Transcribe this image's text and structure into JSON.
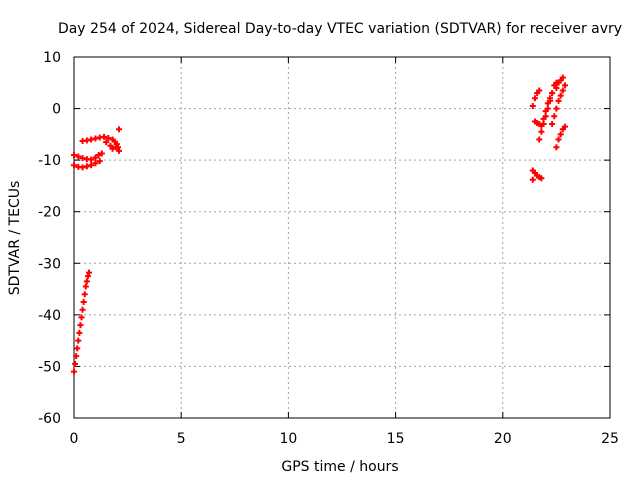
{
  "chart_data": {
    "type": "scatter",
    "title": "Day 254 of 2024, Sidereal Day-to-day VTEC variation (SDTVAR) for receiver avry",
    "xlabel": "GPS time / hours",
    "ylabel": "SDTVAR / TECUs",
    "xlim": [
      0,
      25
    ],
    "ylim": [
      -60,
      10
    ],
    "xticks": [
      "0",
      "5",
      "10",
      "15",
      "20",
      "25"
    ],
    "yticks": [
      "10",
      "0",
      "-10",
      "-20",
      "-30",
      "-40",
      "-50",
      "-60"
    ],
    "grid": true,
    "marker": "+",
    "color": "#ff0000",
    "series": [
      {
        "points": [
          [
            0.0,
            -51.0
          ],
          [
            0.05,
            -49.5
          ],
          [
            0.1,
            -48.0
          ],
          [
            0.15,
            -46.5
          ],
          [
            0.2,
            -45.0
          ],
          [
            0.25,
            -43.5
          ],
          [
            0.3,
            -42.0
          ],
          [
            0.35,
            -40.5
          ],
          [
            0.4,
            -39.0
          ],
          [
            0.45,
            -37.5
          ],
          [
            0.5,
            -36.0
          ],
          [
            0.55,
            -34.5
          ],
          [
            0.6,
            -33.5
          ],
          [
            0.65,
            -32.5
          ],
          [
            0.7,
            -31.8
          ],
          [
            0.0,
            -9.0
          ],
          [
            0.2,
            -9.3
          ],
          [
            0.4,
            -9.6
          ],
          [
            0.6,
            -9.8
          ],
          [
            0.8,
            -9.9
          ],
          [
            1.0,
            -9.5
          ],
          [
            1.15,
            -9.0
          ],
          [
            1.3,
            -8.7
          ],
          [
            0.0,
            -11.0
          ],
          [
            0.2,
            -11.3
          ],
          [
            0.4,
            -11.4
          ],
          [
            0.6,
            -11.2
          ],
          [
            0.8,
            -11.0
          ],
          [
            1.0,
            -10.6
          ],
          [
            1.2,
            -10.2
          ],
          [
            0.4,
            -6.3
          ],
          [
            0.6,
            -6.2
          ],
          [
            0.8,
            -6.0
          ],
          [
            1.0,
            -5.8
          ],
          [
            1.2,
            -5.6
          ],
          [
            1.4,
            -5.5
          ],
          [
            1.6,
            -5.7
          ],
          [
            1.8,
            -6.0
          ],
          [
            1.9,
            -6.4
          ],
          [
            2.0,
            -6.9
          ],
          [
            2.05,
            -7.5
          ],
          [
            2.1,
            -8.2
          ],
          [
            1.5,
            -6.5
          ],
          [
            1.7,
            -7.2
          ],
          [
            1.8,
            -7.8
          ],
          [
            1.95,
            -7.5
          ],
          [
            2.1,
            -4.0
          ],
          [
            21.4,
            0.5
          ],
          [
            21.5,
            2.0
          ],
          [
            21.6,
            3.0
          ],
          [
            21.7,
            3.5
          ],
          [
            21.5,
            -2.5
          ],
          [
            21.6,
            -2.8
          ],
          [
            21.7,
            -3.0
          ],
          [
            21.8,
            -3.3
          ],
          [
            21.7,
            -6.0
          ],
          [
            21.8,
            -4.5
          ],
          [
            21.9,
            -3.0
          ],
          [
            22.0,
            -1.5
          ],
          [
            22.1,
            0.0
          ],
          [
            22.2,
            1.5
          ],
          [
            22.3,
            3.0
          ],
          [
            22.4,
            4.5
          ],
          [
            22.5,
            5.0
          ],
          [
            21.9,
            -2.0
          ],
          [
            22.0,
            -0.5
          ],
          [
            22.1,
            1.0
          ],
          [
            22.2,
            2.0
          ],
          [
            22.3,
            3.0
          ],
          [
            22.5,
            4.0
          ],
          [
            22.6,
            5.0
          ],
          [
            22.7,
            5.5
          ],
          [
            22.8,
            6.0
          ],
          [
            22.3,
            -3.0
          ],
          [
            22.4,
            -1.5
          ],
          [
            22.5,
            0.0
          ],
          [
            22.6,
            1.5
          ],
          [
            22.7,
            2.5
          ],
          [
            22.8,
            3.5
          ],
          [
            22.9,
            4.5
          ],
          [
            22.5,
            -7.5
          ],
          [
            22.6,
            -6.0
          ],
          [
            22.7,
            -5.0
          ],
          [
            22.8,
            -4.0
          ],
          [
            22.9,
            -3.5
          ],
          [
            21.4,
            -12.0
          ],
          [
            21.5,
            -12.5
          ],
          [
            21.6,
            -13.0
          ],
          [
            21.7,
            -13.3
          ],
          [
            21.8,
            -13.5
          ],
          [
            21.4,
            -13.8
          ]
        ]
      }
    ]
  }
}
